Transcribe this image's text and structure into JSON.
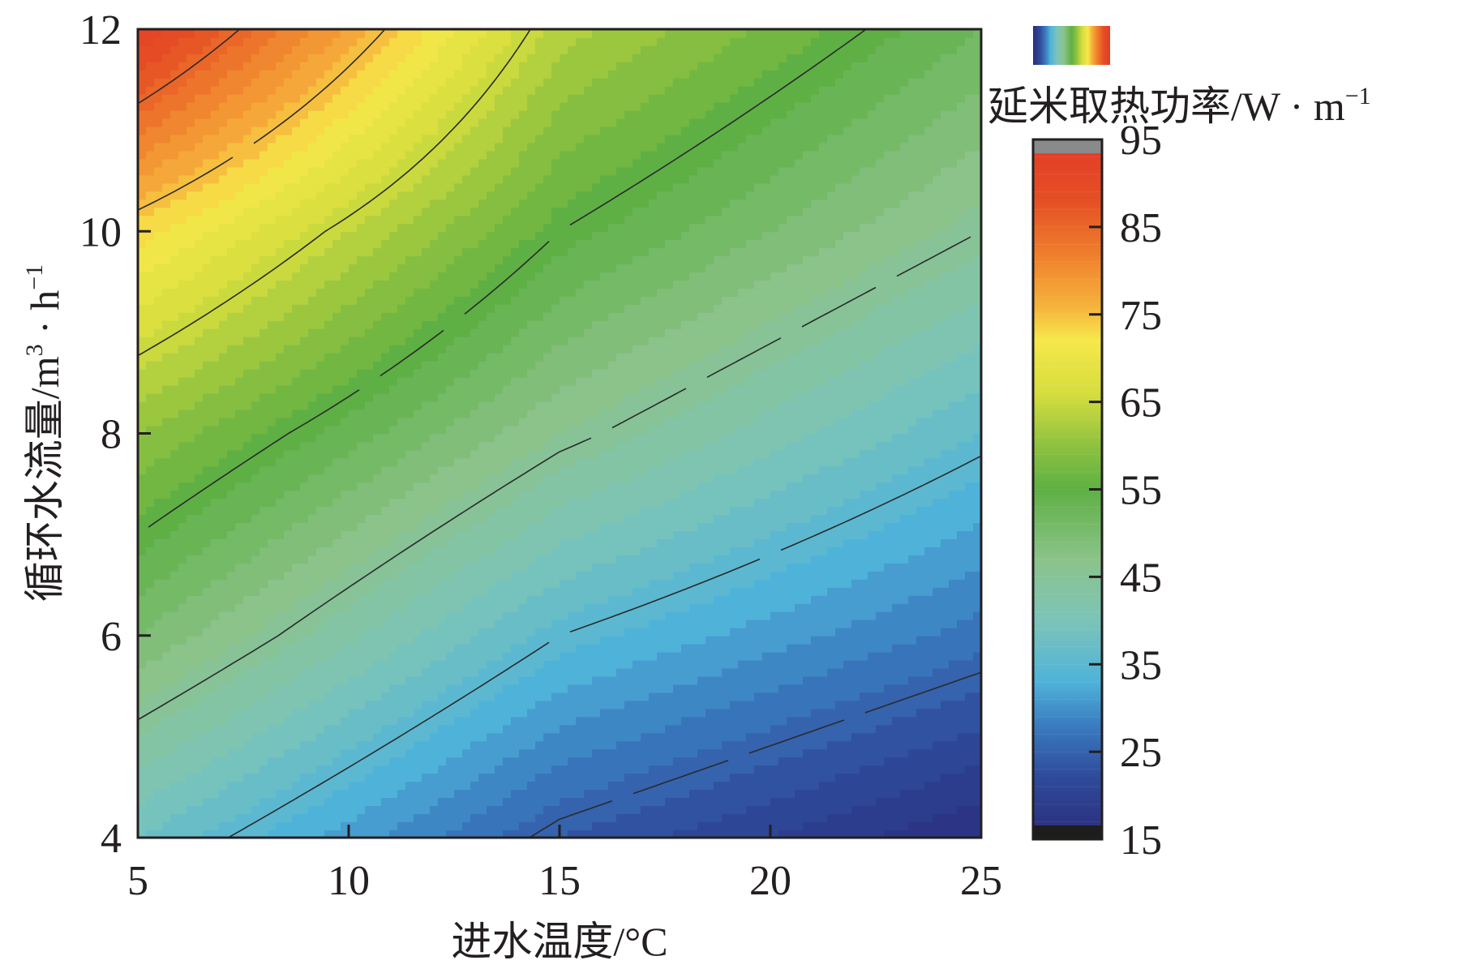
{
  "chart_data": {
    "type": "heatmap",
    "subtype": "filled-contour",
    "x_axis": {
      "label": "进水温度/°C",
      "range": [
        5,
        25
      ],
      "ticks": [
        5,
        10,
        15,
        20,
        25
      ],
      "tick_labels": [
        "5",
        "10",
        "15",
        "20",
        "25"
      ]
    },
    "y_axis": {
      "label": "循环水流量/m³ · h⁻¹",
      "label_base": "循环水流量/m",
      "label_mid": " · h",
      "label_sup1": "3",
      "label_sup2": "−1",
      "range": [
        4,
        12
      ],
      "ticks": [
        4,
        6,
        8,
        10,
        12
      ],
      "tick_labels": [
        "4",
        "6",
        "8",
        "10",
        "12"
      ]
    },
    "colorbar": {
      "title": "延米取热功率/W · m⁻¹",
      "title_base": "延米取热功率/W · m",
      "title_sup": "−1",
      "range": [
        15,
        95
      ],
      "ticks": [
        15,
        25,
        35,
        45,
        55,
        65,
        75,
        85,
        95
      ],
      "tick_labels": [
        "15",
        "25",
        "35",
        "45",
        "55",
        "65",
        "75",
        "85",
        "95"
      ],
      "colors": [
        "#2b2c7c",
        "#2f4a9a",
        "#3a7cc0",
        "#4fb3d9",
        "#7dc4b8",
        "#8bc38a",
        "#5eb044",
        "#8fc23f",
        "#d6dd3e",
        "#f6e84a",
        "#f6b13b",
        "#ef7d2c",
        "#e54f25",
        "#e33a27"
      ],
      "color_stops": [
        15,
        22,
        28,
        33,
        40,
        47,
        55,
        60,
        66,
        72,
        76,
        82,
        88,
        95
      ]
    },
    "contour_levels": [
      25,
      35,
      45,
      55,
      65,
      75,
      85
    ],
    "grid_values": {
      "x": [
        5,
        15,
        25
      ],
      "y": [
        4,
        6,
        8,
        10,
        12
      ],
      "z": [
        [
          38,
          24,
          16
        ],
        [
          50,
          35,
          27
        ],
        [
          60,
          46,
          36
        ],
        [
          73,
          55,
          45
        ],
        [
          92,
          63,
          52
        ]
      ]
    }
  }
}
